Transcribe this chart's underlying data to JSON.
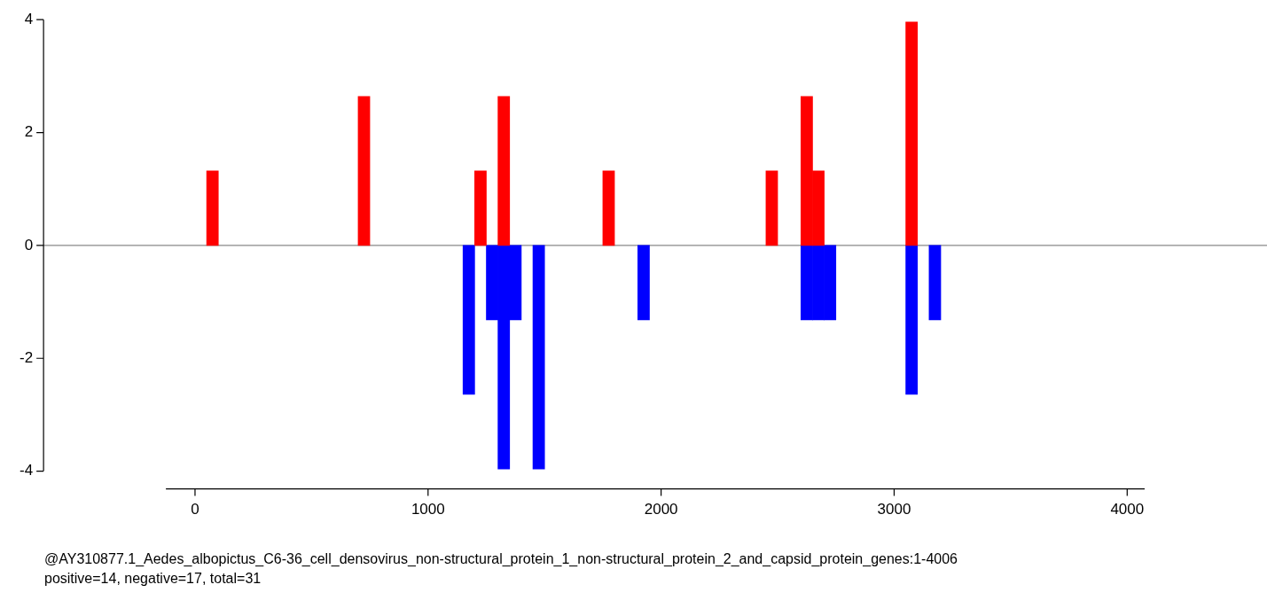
{
  "chart_data": {
    "type": "bar",
    "series": [
      {
        "color": "#ff0000",
        "x": [
          75,
          725,
          1225,
          1325,
          1775,
          2475,
          2625,
          2675,
          3075
        ],
        "values": [
          1.32,
          2.64,
          1.32,
          2.64,
          1.32,
          1.32,
          2.64,
          1.32,
          3.96
        ]
      },
      {
        "color": "#0000ff",
        "x": [
          1175,
          1275,
          1325,
          1375,
          1475,
          1925,
          2625,
          2675,
          2725,
          3075,
          3175
        ],
        "values": [
          -2.64,
          -1.32,
          -3.96,
          -1.32,
          -3.96,
          -1.32,
          -1.32,
          -1.32,
          -1.32,
          -2.64,
          -1.32
        ]
      }
    ],
    "xlim": [
      -125,
      4075
    ],
    "xticks": [
      0,
      1000,
      2000,
      3000,
      4000
    ],
    "ylim": [
      -4,
      4
    ],
    "yticks": [
      -4,
      -2,
      0,
      2,
      4
    ],
    "ref_lines": [
      {
        "axis": "y",
        "value": 0,
        "color": "#888888"
      }
    ],
    "grid": false,
    "legend": false,
    "annotations": [
      "@AY310877.1_Aedes_albopictus_C6-36_cell_densovirus_non-structural_protein_1_non-structural_protein_2_and_capsid_protein_genes:1-4006",
      "positive=14, negative=17, total=31"
    ]
  }
}
